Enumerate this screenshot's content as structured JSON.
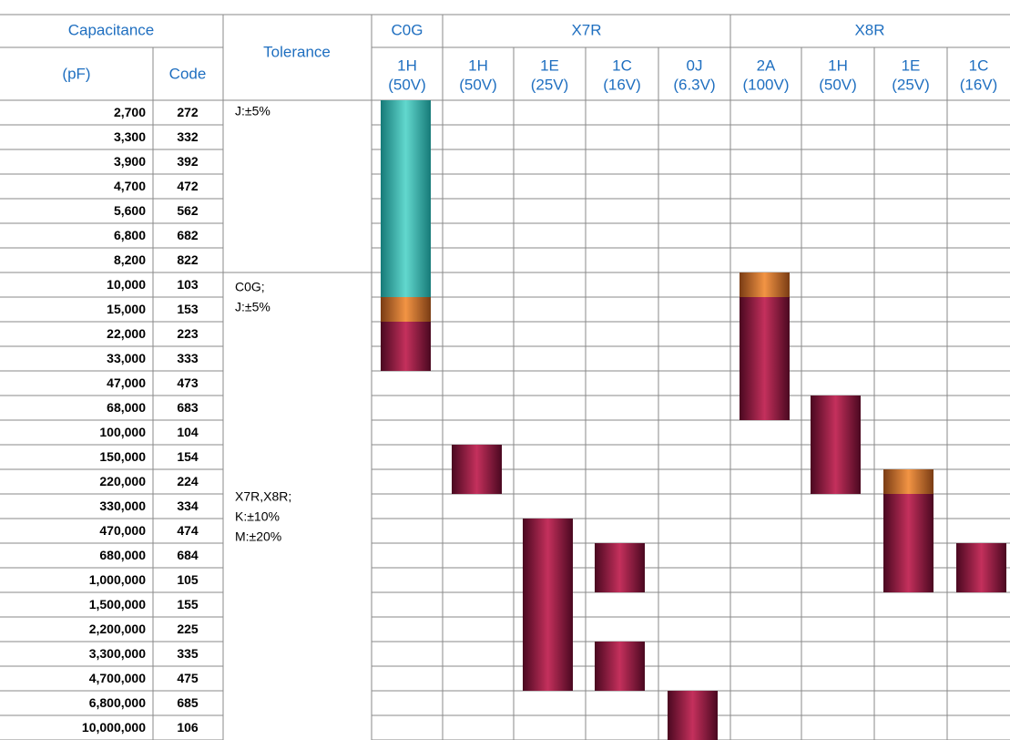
{
  "header": {
    "capacitance": "Capacitance",
    "pf": "(pF)",
    "code": "Code",
    "tolerance": "Tolerance",
    "groups": [
      "C0G",
      "X7R",
      "X8R"
    ],
    "voltages": [
      [
        "1H",
        "(50V)"
      ],
      [
        "1H",
        "(50V)"
      ],
      [
        "1E",
        "(25V)"
      ],
      [
        "1C",
        "(16V)"
      ],
      [
        "0J",
        "(6.3V)"
      ],
      [
        "2A",
        "(100V)"
      ],
      [
        "1H",
        "(50V)"
      ],
      [
        "1E",
        "(25V)"
      ],
      [
        "1C",
        "(16V)"
      ]
    ]
  },
  "tolerance_notes": [
    [
      "J:±5%"
    ],
    [
      "C0G;",
      "J:±5%"
    ],
    [
      "X7R,X8R;",
      "K:±10%",
      "M:±20%"
    ]
  ],
  "rows": [
    [
      "2,700",
      "272"
    ],
    [
      "3,300",
      "332"
    ],
    [
      "3,900",
      "392"
    ],
    [
      "4,700",
      "472"
    ],
    [
      "5,600",
      "562"
    ],
    [
      "6,800",
      "682"
    ],
    [
      "8,200",
      "822"
    ],
    [
      "10,000",
      "103"
    ],
    [
      "15,000",
      "153"
    ],
    [
      "22,000",
      "223"
    ],
    [
      "33,000",
      "333"
    ],
    [
      "47,000",
      "473"
    ],
    [
      "68,000",
      "683"
    ],
    [
      "100,000",
      "104"
    ],
    [
      "150,000",
      "154"
    ],
    [
      "220,000",
      "224"
    ],
    [
      "330,000",
      "334"
    ],
    [
      "470,000",
      "474"
    ],
    [
      "680,000",
      "684"
    ],
    [
      "1,000,000",
      "105"
    ],
    [
      "1,500,000",
      "155"
    ],
    [
      "2,200,000",
      "225"
    ],
    [
      "3,300,000",
      "335"
    ],
    [
      "4,700,000",
      "475"
    ],
    [
      "6,800,000",
      "685"
    ],
    [
      "10,000,000",
      "106"
    ]
  ]
}
